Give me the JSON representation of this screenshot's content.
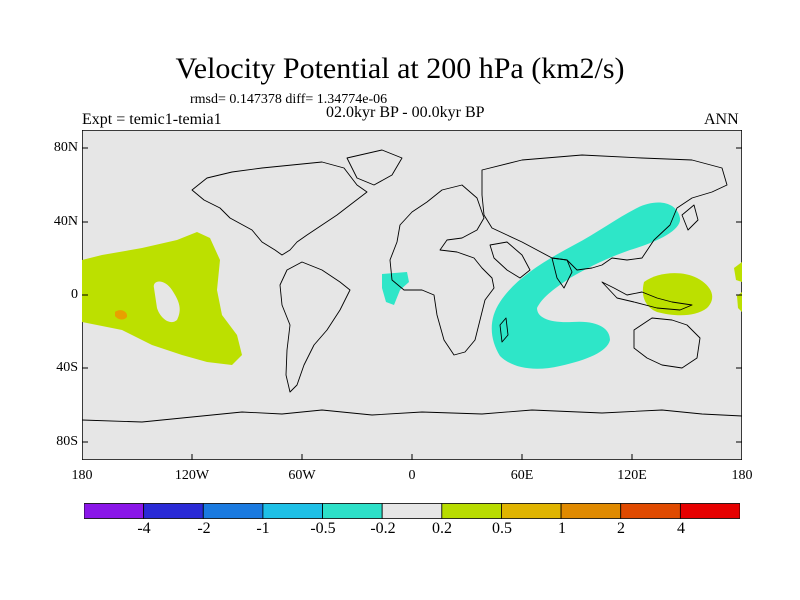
{
  "title": "Velocity Potential at 200 hPa (km2/s)",
  "stats": "rmsd= 0.147378 diff= 1.34774e-06",
  "experiment": "Expt = temic1-temia1",
  "period": "02.0kyr BP - 00.0kyr BP",
  "season": "ANN",
  "lat_ticks": [
    "80N",
    "40N",
    "0",
    "40S",
    "80S"
  ],
  "lon_ticks": [
    "180",
    "120W",
    "60W",
    "0",
    "60E",
    "120E",
    "180"
  ],
  "colorbar": {
    "labels": [
      "-4",
      "-2",
      "-1",
      "-0.5",
      "-0.2",
      "0.2",
      "0.5",
      "1",
      "2",
      "4"
    ],
    "colors": [
      "#8a16e8",
      "#2a2ad6",
      "#1a7ae0",
      "#1ec0e6",
      "#2de0c8",
      "#e6e6e6",
      "#b8dc00",
      "#e0b400",
      "#e08a00",
      "#e04a00",
      "#e60000"
    ]
  },
  "palette": {
    "ocean_land": "#e6e6e6",
    "positive_weak": "#bce000",
    "positive_mid": "#e8a000",
    "negative_weak": "#2ee6c8"
  }
}
